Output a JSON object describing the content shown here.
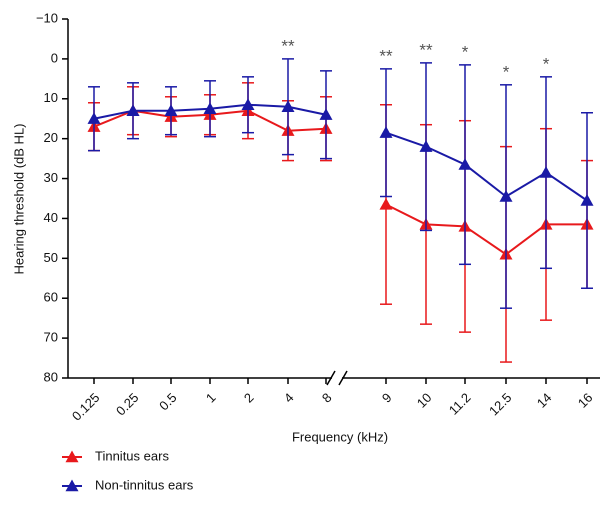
{
  "chart_data": {
    "type": "line",
    "x_label": "Frequency (kHz)",
    "y_label": "Hearing threshold (dB HL)",
    "categories": [
      "0.125",
      "0.25",
      "0.5",
      "1",
      "2",
      "4",
      "8",
      "9",
      "10",
      "11.2",
      "12.5",
      "14",
      "16"
    ],
    "ylim": [
      -10,
      80
    ],
    "y_inverted": true,
    "yticks": [
      {
        "value": -10,
        "label": "−10"
      },
      0,
      10,
      20,
      30,
      40,
      50,
      60,
      70,
      80
    ],
    "series": [
      {
        "name": "Tinnitus ears",
        "color": "#e8191c",
        "values": [
          17,
          13,
          14.5,
          14,
          13,
          18,
          17.5,
          36.5,
          41.5,
          42,
          49,
          41.5,
          41.5
        ],
        "errors": [
          6,
          6,
          5,
          5,
          7,
          7.5,
          8,
          25,
          25,
          26.5,
          27,
          24,
          16
        ]
      },
      {
        "name": "Non-tinnitus ears",
        "color": "#1a1aa6",
        "values": [
          15,
          13,
          13,
          12.5,
          11.5,
          12,
          14,
          18.5,
          22,
          26.5,
          34.5,
          28.5,
          35.5
        ],
        "errors": [
          8,
          7,
          6,
          7,
          7,
          12,
          11,
          16,
          21,
          25,
          28,
          24,
          22
        ]
      }
    ],
    "annotations": [
      {
        "category": "4",
        "text": "**"
      },
      {
        "category": "9",
        "text": "**"
      },
      {
        "category": "10",
        "text": "**"
      },
      {
        "category": "11.2",
        "text": "*"
      },
      {
        "category": "12.5",
        "text": "*"
      },
      {
        "category": "14",
        "text": "*"
      }
    ]
  }
}
